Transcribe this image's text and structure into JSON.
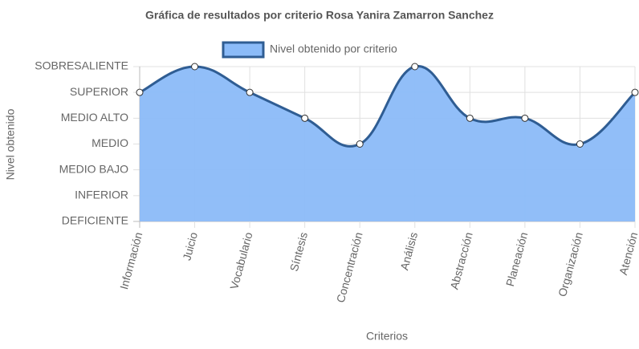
{
  "chart_data": {
    "type": "line",
    "title": "Gráfica de resultados por criterio Rosa Yanira Zamarron Sanchez",
    "x_label": "Criterios",
    "y_label": "Nivel obtenido",
    "categories": [
      "Información",
      "Juicio",
      "Vocabulario",
      "Síntesis",
      "Concentración",
      "Análisis",
      "Abstracción",
      "Planeación",
      "Organización",
      "Atención"
    ],
    "series": [
      {
        "name": "Nivel obtenido por criterio",
        "color": "#2f5d93",
        "fill": "#8bbbf8",
        "values": [
          5,
          6,
          5,
          4,
          3,
          6,
          4,
          4,
          3,
          5
        ]
      }
    ],
    "ylim": [
      0,
      6
    ],
    "yticks": [
      {
        "value": 0,
        "label": "DEFICIENTE"
      },
      {
        "value": 1,
        "label": "INFERIOR"
      },
      {
        "value": 2,
        "label": "MEDIO BAJO"
      },
      {
        "value": 3,
        "label": "MEDIO"
      },
      {
        "value": 4,
        "label": "MEDIO ALTO"
      },
      {
        "value": 5,
        "label": "SUPERIOR"
      },
      {
        "value": 6,
        "label": "SOBRESALIENTE"
      }
    ],
    "grid": true,
    "legend": "top"
  }
}
